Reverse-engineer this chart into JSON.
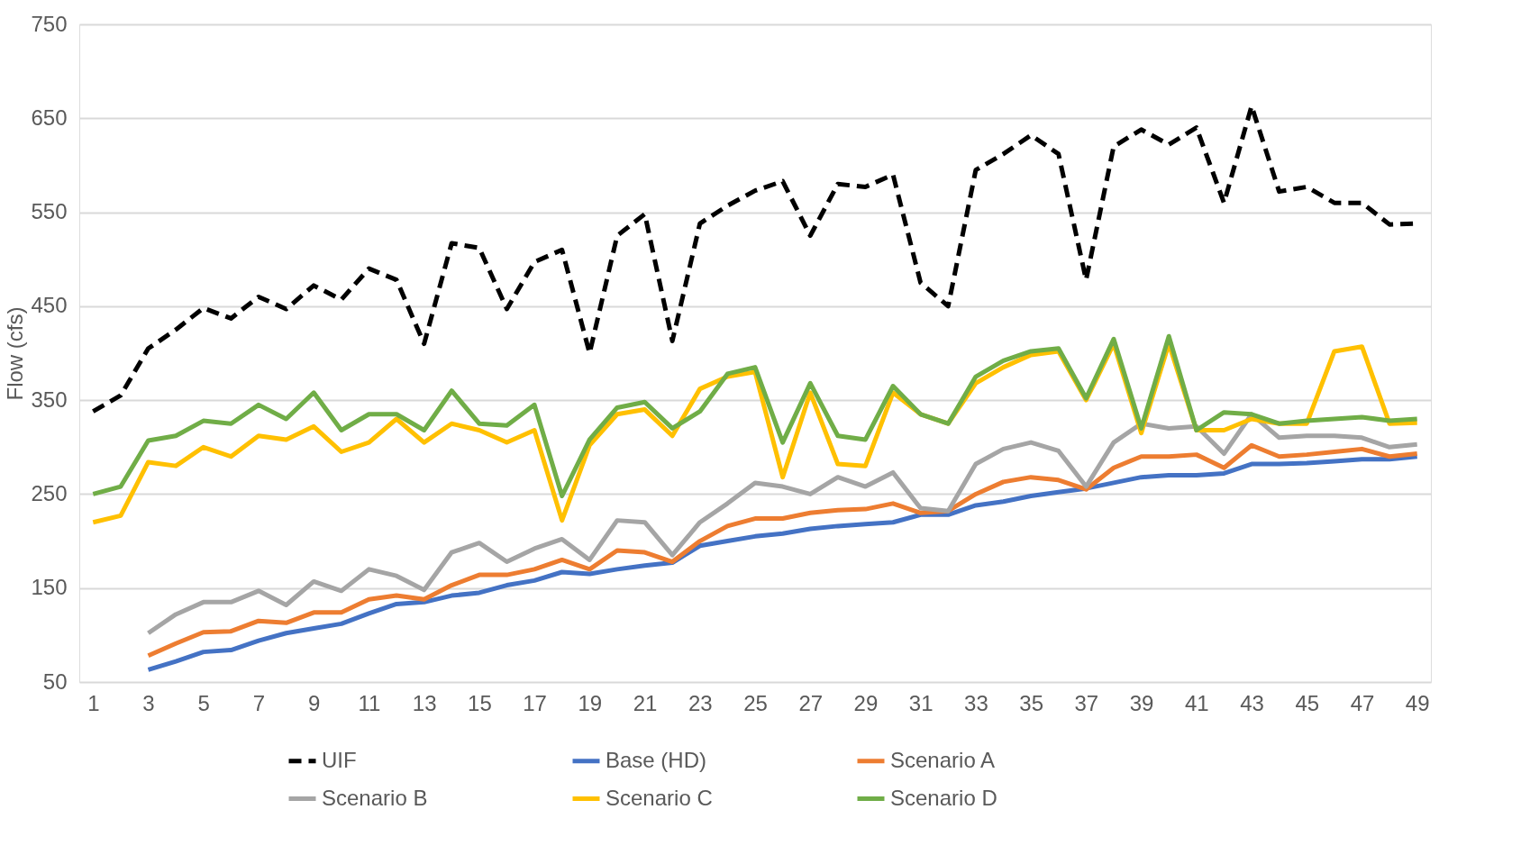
{
  "chart_data": {
    "type": "line",
    "ylabel": "Flow (cfs)",
    "x": [
      1,
      2,
      3,
      4,
      5,
      6,
      7,
      8,
      9,
      10,
      11,
      12,
      13,
      14,
      15,
      16,
      17,
      18,
      19,
      20,
      21,
      22,
      23,
      24,
      25,
      26,
      27,
      28,
      29,
      30,
      31,
      32,
      33,
      34,
      35,
      36,
      37,
      38,
      39,
      40,
      41,
      42,
      43,
      44,
      45,
      46,
      47,
      48,
      49
    ],
    "xlim": [
      0.5,
      49.5
    ],
    "xticks": [
      1,
      3,
      5,
      7,
      9,
      11,
      13,
      15,
      17,
      19,
      21,
      23,
      25,
      27,
      29,
      31,
      33,
      35,
      37,
      39,
      41,
      43,
      45,
      47,
      49
    ],
    "ylim": [
      50,
      750
    ],
    "yticks": [
      50,
      150,
      250,
      350,
      450,
      550,
      650,
      750
    ],
    "grid": "y",
    "legend": "bottom",
    "marker": "none",
    "series": [
      {
        "name": "UIF",
        "color": "#000000",
        "line_style": "dashed",
        "values": [
          338,
          355,
          405,
          425,
          448,
          437,
          460,
          447,
          472,
          457,
          490,
          478,
          410,
          517,
          512,
          447,
          497,
          510,
          400,
          525,
          548,
          413,
          538,
          557,
          573,
          583,
          525,
          580,
          577,
          590,
          475,
          450,
          595,
          612,
          632,
          612,
          478,
          620,
          638,
          622,
          640,
          560,
          663,
          572,
          577,
          560,
          560,
          537,
          538
        ]
      },
      {
        "name": "Base (HD)",
        "color": "#4472c4",
        "line_style": "solid",
        "values": [
          null,
          null,
          63,
          72,
          82,
          84,
          94,
          102,
          107,
          112,
          123,
          133,
          135,
          142,
          145,
          153,
          158,
          167,
          165,
          170,
          174,
          177,
          195,
          200,
          205,
          208,
          213,
          216,
          218,
          220,
          228,
          228,
          238,
          242,
          248,
          252,
          256,
          262,
          268,
          270,
          270,
          272,
          282,
          282,
          283,
          285,
          287,
          287,
          290
        ]
      },
      {
        "name": "Scenario A",
        "color": "#ed7d31",
        "line_style": "solid",
        "values": [
          null,
          null,
          78,
          91,
          103,
          104,
          115,
          113,
          124,
          124,
          138,
          142,
          138,
          153,
          164,
          164,
          170,
          180,
          170,
          190,
          188,
          178,
          200,
          216,
          224,
          224,
          230,
          233,
          234,
          240,
          230,
          232,
          250,
          263,
          268,
          265,
          255,
          278,
          290,
          290,
          292,
          278,
          302,
          290,
          292,
          295,
          298,
          290,
          293
        ]
      },
      {
        "name": "Scenario B",
        "color": "#a5a5a5",
        "line_style": "solid",
        "values": [
          null,
          null,
          102,
          122,
          135,
          135,
          147,
          132,
          157,
          147,
          170,
          163,
          148,
          188,
          198,
          178,
          192,
          202,
          180,
          222,
          220,
          185,
          220,
          240,
          262,
          258,
          250,
          268,
          258,
          273,
          235,
          232,
          282,
          298,
          305,
          296,
          258,
          305,
          325,
          320,
          322,
          293,
          335,
          310,
          312,
          312,
          310,
          300,
          303
        ]
      },
      {
        "name": "Scenario C",
        "color": "#ffc000",
        "line_style": "solid",
        "values": [
          220,
          227,
          284,
          280,
          300,
          290,
          312,
          308,
          322,
          295,
          305,
          330,
          305,
          325,
          318,
          305,
          318,
          222,
          302,
          335,
          340,
          312,
          362,
          375,
          380,
          268,
          358,
          282,
          280,
          358,
          335,
          325,
          368,
          385,
          398,
          402,
          350,
          410,
          315,
          410,
          318,
          318,
          330,
          325,
          325,
          402,
          407,
          325,
          326
        ]
      },
      {
        "name": "Scenario D",
        "color": "#70ad47",
        "line_style": "solid",
        "values": [
          250,
          258,
          307,
          312,
          328,
          325,
          345,
          330,
          358,
          318,
          335,
          335,
          318,
          360,
          325,
          323,
          345,
          248,
          308,
          342,
          348,
          320,
          338,
          378,
          385,
          305,
          368,
          312,
          308,
          365,
          335,
          325,
          375,
          392,
          402,
          405,
          352,
          415,
          320,
          418,
          318,
          337,
          335,
          325,
          328,
          330,
          332,
          328,
          330
        ]
      }
    ]
  }
}
